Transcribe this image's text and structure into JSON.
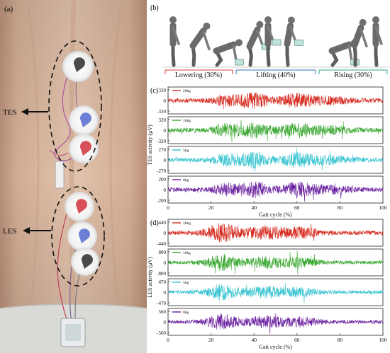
{
  "panels": {
    "a": {
      "label": "(a)",
      "tes_label": "TES",
      "les_label": "LES"
    },
    "b": {
      "label": "(b)",
      "phases": [
        {
          "text": "Lowering (30%)",
          "color": "#d73b3b"
        },
        {
          "text": "Lifting (40%)",
          "color": "#2f6fb8"
        },
        {
          "text": "Rising (30%)",
          "color": "#2aa58a"
        }
      ]
    },
    "c": {
      "label": "(c)"
    },
    "d": {
      "label": "(d)"
    }
  },
  "chart_data": [
    {
      "type": "line",
      "panel": "c",
      "ylabel": "TES activity (μV)",
      "xlabel": "Gait cycle (%)",
      "xlim": [
        0,
        100
      ],
      "xticks": [
        "0",
        "20",
        "40",
        "60",
        "80",
        "100"
      ],
      "series": [
        {
          "name": "20kg",
          "color": "#d62a1e",
          "yticks": [
            "330",
            "0",
            "-330"
          ],
          "ylim": [
            -330,
            330
          ]
        },
        {
          "name": "10kg",
          "color": "#3aa831",
          "yticks": [
            "320",
            "0",
            "-320"
          ],
          "ylim": [
            -320,
            320
          ]
        },
        {
          "name": "5kg",
          "color": "#35c3d0",
          "yticks": [
            "270",
            "0",
            "-270"
          ],
          "ylim": [
            -270,
            270
          ]
        },
        {
          "name": "0kg",
          "color": "#6a1fa0",
          "yticks": [
            "200",
            "0",
            "-200"
          ],
          "ylim": [
            -200,
            200
          ]
        }
      ]
    },
    {
      "type": "line",
      "panel": "d",
      "ylabel": "LES activity (μV)",
      "xlabel": "Gait cycle (%)",
      "xlim": [
        0,
        100
      ],
      "xticks": [
        "0",
        "20",
        "40",
        "60",
        "80",
        "100"
      ],
      "series": [
        {
          "name": "20kg",
          "color": "#d62a1e",
          "yticks": [
            "440",
            "0",
            "-440"
          ],
          "ylim": [
            -440,
            440
          ]
        },
        {
          "name": "10kg",
          "color": "#3aa831",
          "yticks": [
            "800",
            "0",
            "-800"
          ],
          "ylim": [
            -800,
            800
          ]
        },
        {
          "name": "5kg",
          "color": "#35c3d0",
          "yticks": [
            "470",
            "0",
            "-470"
          ],
          "ylim": [
            -470,
            470
          ]
        },
        {
          "name": "0kg",
          "color": "#6a1fa0",
          "yticks": [
            "560",
            "0",
            "-560"
          ],
          "ylim": [
            -560,
            560
          ]
        }
      ]
    }
  ]
}
